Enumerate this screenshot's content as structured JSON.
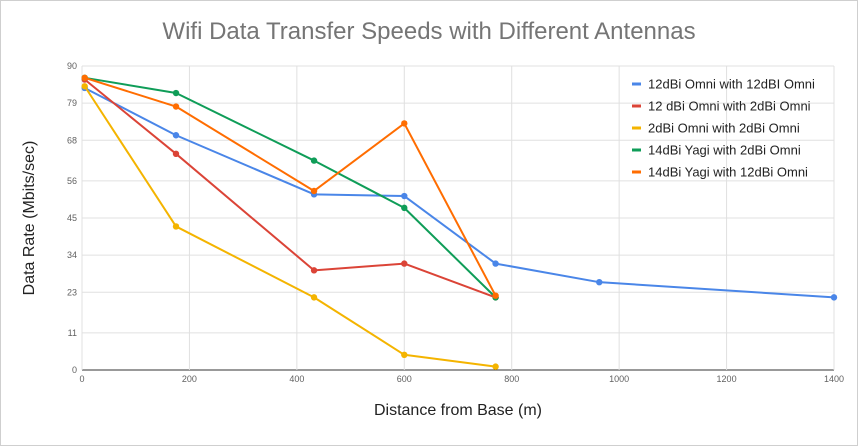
{
  "chart_data": {
    "type": "line",
    "title": "Wifi Data Transfer Speeds with Different Antennas",
    "xlabel": "Distance from Base (m)",
    "ylabel": "Data Rate (Mbits/sec)",
    "xlim": [
      0,
      1400
    ],
    "ylim": [
      0,
      90
    ],
    "xticks": [
      "0",
      "200",
      "400",
      "600",
      "800",
      "1000",
      "1200",
      "1400"
    ],
    "yticks": [
      "0",
      "11",
      "23",
      "34",
      "45",
      "56",
      "68",
      "79",
      "90"
    ],
    "grid": true,
    "legend_position": "top-right",
    "series": [
      {
        "name": "12dBi Omni with 12dBI Omni",
        "color": "#4a86e8",
        "points": [
          [
            5,
            83.5
          ],
          [
            175,
            69.5
          ],
          [
            432,
            52
          ],
          [
            600,
            51.5
          ],
          [
            770,
            31.5
          ],
          [
            963,
            26
          ],
          [
            1400,
            21.5
          ]
        ]
      },
      {
        "name": "12 dBi Omni with 2dBi Omni",
        "color": "#db4437",
        "points": [
          [
            5,
            86
          ],
          [
            175,
            64
          ],
          [
            432,
            29.5
          ],
          [
            600,
            31.5
          ],
          [
            770,
            21.5
          ]
        ]
      },
      {
        "name": "2dBi Omni with 2dBi Omni",
        "color": "#f4b400",
        "points": [
          [
            5,
            84
          ],
          [
            175,
            42.5
          ],
          [
            432,
            21.5
          ],
          [
            600,
            4.5
          ],
          [
            770,
            1
          ]
        ]
      },
      {
        "name": "14dBi Yagi with 2dBi Omni",
        "color": "#0f9d58",
        "points": [
          [
            5,
            86.5
          ],
          [
            175,
            82
          ],
          [
            432,
            62
          ],
          [
            600,
            48
          ],
          [
            770,
            21.5
          ]
        ]
      },
      {
        "name": "14dBi Yagi with 12dBi Omni",
        "color": "#ff6d01",
        "points": [
          [
            5,
            86.5
          ],
          [
            175,
            78
          ],
          [
            432,
            53
          ],
          [
            600,
            73
          ],
          [
            770,
            22
          ]
        ]
      }
    ]
  }
}
